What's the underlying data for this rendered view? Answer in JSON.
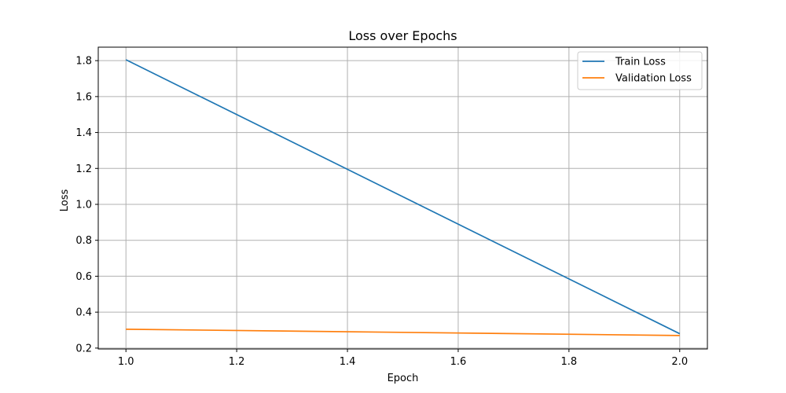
{
  "chart_data": {
    "type": "line",
    "title": "Loss over Epochs",
    "xlabel": "Epoch",
    "ylabel": "Loss",
    "xlim": [
      0.95,
      2.05
    ],
    "ylim": [
      0.195,
      1.875
    ],
    "xticks": [
      1.0,
      1.2,
      1.4,
      1.6,
      1.8,
      2.0
    ],
    "xtick_labels": [
      "1.0",
      "1.2",
      "1.4",
      "1.6",
      "1.8",
      "2.0"
    ],
    "yticks": [
      0.2,
      0.4,
      0.6,
      0.8,
      1.0,
      1.2,
      1.4,
      1.6,
      1.8
    ],
    "ytick_labels": [
      "0.2",
      "0.4",
      "0.6",
      "0.8",
      "1.0",
      "1.2",
      "1.4",
      "1.6",
      "1.8"
    ],
    "grid": true,
    "legend": "top-right",
    "series": [
      {
        "name": "Train Loss",
        "color": "#1f77b4",
        "x": [
          1.0,
          2.0
        ],
        "y": [
          1.805,
          0.28
        ]
      },
      {
        "name": "Validation Loss",
        "color": "#ff7f0e",
        "x": [
          1.0,
          2.0
        ],
        "y": [
          0.305,
          0.27
        ]
      }
    ]
  }
}
